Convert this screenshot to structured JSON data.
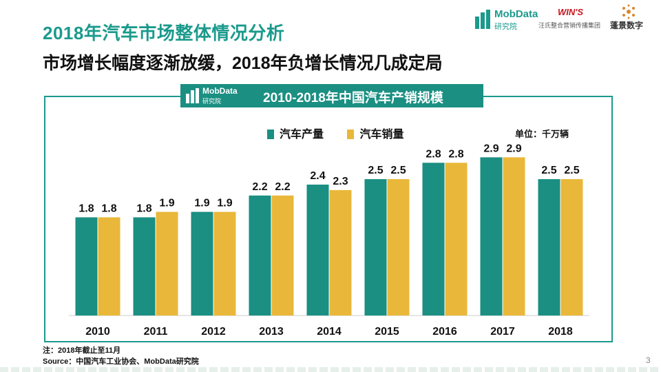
{
  "page": {
    "title": "2018年汽车市场整体情况分析",
    "subtitle": "市场增长幅度逐渐放缓，2018年负增长情况几成定局",
    "note": "注：2018年截止至11月",
    "source": "Source：中国汽车工业协会、MobData研究院",
    "page_number": "3"
  },
  "logos": {
    "mobdata_name": "MobData",
    "mobdata_sub": "研究院",
    "wins_name": "WIN'S",
    "wins_sub": "汪氏整合营销传播集团",
    "pengjing_name": "蓬景数字"
  },
  "colors": {
    "production": "#1a8f82",
    "sales": "#e9b83a",
    "accent": "#1a9a8c"
  },
  "chart_data": {
    "type": "bar",
    "title": "2010-2018年中国汽车产销规模",
    "unit_label": "单位：千万辆",
    "categories": [
      "2010",
      "2011",
      "2012",
      "2013",
      "2014",
      "2015",
      "2016",
      "2017",
      "2018"
    ],
    "series": [
      {
        "name": "汽车产量",
        "values": [
          1.8,
          1.8,
          1.9,
          2.2,
          2.4,
          2.5,
          2.8,
          2.9,
          2.5
        ]
      },
      {
        "name": "汽车销量",
        "values": [
          1.8,
          1.9,
          1.9,
          2.2,
          2.3,
          2.5,
          2.8,
          2.9,
          2.5
        ]
      }
    ],
    "ylim": [
      0,
      3.5
    ],
    "grid": false,
    "legend_position": "top-center"
  }
}
